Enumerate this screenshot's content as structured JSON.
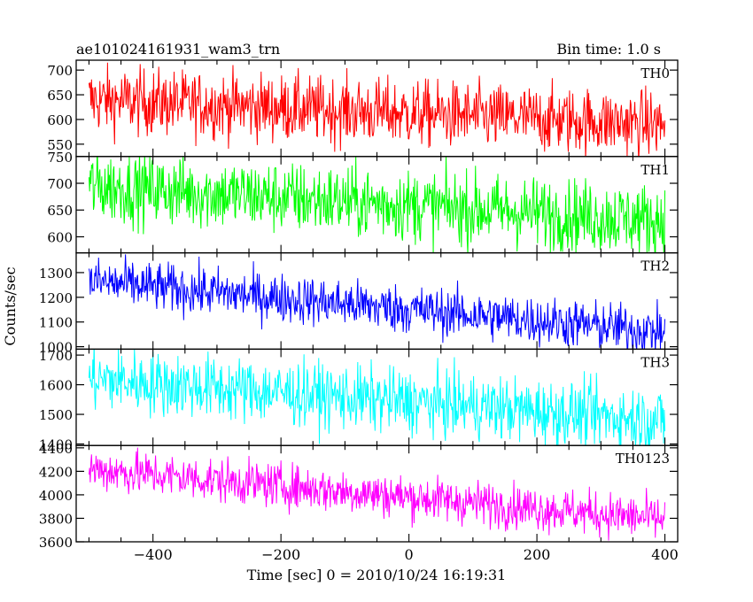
{
  "header": {
    "title": "ae101024161931_wam3_trn",
    "bin_time": "Bin time: 1.0 s"
  },
  "axes": {
    "ylabel": "Counts/sec",
    "xlabel": "Time [sec] 0 = 2010/10/24 16:19:31"
  },
  "chart_data": {
    "type": "line",
    "shared_x": true,
    "xlim": [
      -520,
      420
    ],
    "x_ticks": [
      -400,
      -200,
      0,
      200,
      400
    ],
    "x_tick_labels": [
      "−400",
      "−200",
      "0",
      "200",
      "400"
    ],
    "x_range": [
      -500,
      400
    ],
    "bin_time_s": 1.0,
    "panels": [
      {
        "name": "TH0",
        "color": "#ff0000",
        "ylim": [
          525,
          720
        ],
        "y_ticks": [
          550,
          600,
          650,
          700
        ],
        "y_tick_labels": [
          "550",
          "600",
          "650",
          "700"
        ],
        "trend": [
          640,
          590
        ],
        "spread": 34
      },
      {
        "name": "TH1",
        "color": "#00ff00",
        "ylim": [
          570,
          750
        ],
        "y_ticks": [
          600,
          650,
          700,
          750
        ],
        "y_tick_labels": [
          "600",
          "650",
          "700",
          "750"
        ],
        "trend": [
          695,
          630
        ],
        "spread": 34
      },
      {
        "name": "TH2",
        "color": "#0000ff",
        "ylim": [
          990,
          1380
        ],
        "y_ticks": [
          1000,
          1100,
          1200,
          1300
        ],
        "y_tick_labels": [
          "1000",
          "1100",
          "1200",
          "1300"
        ],
        "trend": [
          1265,
          1060
        ],
        "spread": 50
      },
      {
        "name": "TH3",
        "color": "#00ffff",
        "ylim": [
          1395,
          1720
        ],
        "y_ticks": [
          1400,
          1500,
          1600,
          1700
        ],
        "y_tick_labels": [
          "1400",
          "1500",
          "1600",
          "1700"
        ],
        "trend": [
          1620,
          1480
        ],
        "spread": 55
      },
      {
        "name": "TH0123",
        "color": "#ff00ff",
        "ylim": [
          3600,
          4420
        ],
        "y_ticks": [
          3600,
          3800,
          4000,
          4200,
          4400
        ],
        "y_tick_labels": [
          "3600",
          "3800",
          "4000",
          "4200",
          "4400"
        ],
        "trend": [
          4220,
          3790
        ],
        "spread": 95
      }
    ]
  }
}
